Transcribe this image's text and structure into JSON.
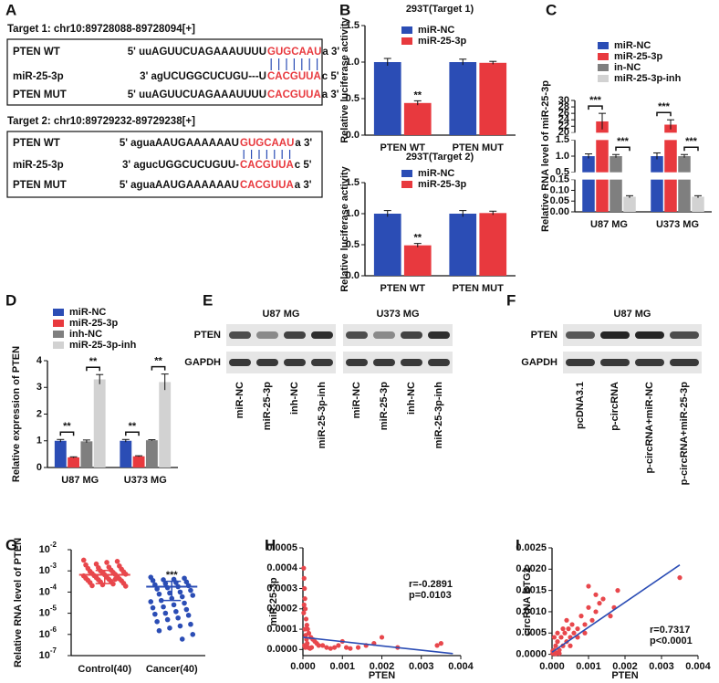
{
  "panel_labels": [
    "A",
    "B",
    "C",
    "D",
    "E",
    "F",
    "G",
    "H",
    "I"
  ],
  "sequences": [
    {
      "title": "Target 1: chr10:89728088-89728094[+]",
      "rows": [
        {
          "label": "PTEN WT",
          "parts": [
            "5' uuAGUUCUAGAAAUUUU",
            "GUGCAAU",
            "a 3'"
          ]
        },
        {
          "label": "miR-25-3p",
          "parts": [
            "3' agUCUGGCUCUGU---U",
            "CACGUUA",
            "c 5'"
          ]
        },
        {
          "label": "PTEN MUT",
          "parts": [
            "5' uuAGUUCUAGAAAUUUU",
            "CACGUUA",
            "a 3'"
          ]
        }
      ]
    },
    {
      "title": "Target 2: chr10:89729232-89729238[+]",
      "rows": [
        {
          "label": "PTEN  WT",
          "parts": [
            "5' aguaAAUGAAAAAAU",
            "GUGCAAU",
            "a 3'"
          ]
        },
        {
          "label": "miR-25-3p",
          "parts": [
            "3' agucUGGCUCUGUU-",
            "CACGUUA",
            "c 5'"
          ]
        },
        {
          "label": "PTEN  MUT",
          "parts": [
            "5' aguaAAUGAAAAAAU",
            "CACGUUA",
            "a 3'"
          ]
        }
      ]
    }
  ],
  "blots": [
    {
      "rows": [
        "PTEN",
        "GAPDH"
      ],
      "groups": [
        {
          "title": "U87 MG",
          "lanes": [
            "miR-NC",
            "miR-25-3p",
            "inh-NC",
            "miR-25-3p-inh"
          ]
        },
        {
          "title": "U373 MG",
          "lanes": [
            "miR-NC",
            "miR-25-3p",
            "inh-NC",
            "miR-25-3p-inh"
          ]
        }
      ]
    },
    {
      "rows": [
        "PTEN",
        "GAPDH"
      ],
      "groups": [
        {
          "title": "U87 MG",
          "lanes": [
            "pcDNA3.1",
            "p-circRNA",
            "p-circRNA+miR-NC",
            "p-circRNA+miR-25-3p"
          ]
        }
      ]
    }
  ],
  "chart_data": [
    {
      "type": "bar",
      "title": "293T(Target 1)",
      "ylabel": "Relative luciferase activity",
      "categories": [
        "PTEN WT",
        "PTEN MUT"
      ],
      "series": [
        {
          "name": "miR-NC",
          "color": "#2b4db5",
          "values": [
            1,
            1
          ],
          "errors": [
            0.05,
            0.04
          ]
        },
        {
          "name": "miR-25-3p",
          "color": "#e8393e",
          "values": [
            0.44,
            0.99
          ],
          "errors": [
            0.03,
            0.02
          ]
        }
      ],
      "ylim": [
        0,
        1.5
      ],
      "yticks": [
        {
          "value": 0,
          "label": "0.0"
        },
        0.5,
        {
          "value": 1,
          "label": "1.0"
        },
        1.5
      ],
      "annotations": [
        "**"
      ]
    },
    {
      "type": "bar",
      "title": "293T(Target 2)",
      "ylabel": "Relative luciferase activity",
      "categories": [
        "PTEN WT",
        "PTEN MUT"
      ],
      "series": [
        {
          "name": "miR-NC",
          "color": "#2b4db5",
          "values": [
            1,
            1
          ],
          "errors": [
            0.05,
            0.05
          ]
        },
        {
          "name": "miR-25-3p",
          "color": "#e8393e",
          "values": [
            0.49,
            1.01
          ],
          "errors": [
            0.03,
            0.03
          ]
        }
      ],
      "ylim": [
        0,
        1.5
      ],
      "yticks": [
        {
          "value": 0,
          "label": "0.0"
        },
        0.5,
        {
          "value": 1,
          "label": "1.0"
        },
        1.5
      ],
      "annotations": [
        "**"
      ]
    },
    {
      "type": "bar",
      "ylabel": "Relative RNA level of miR-25-3p",
      "categories": [
        "U87 MG",
        "U373 MG"
      ],
      "series": [
        {
          "name": "miR-NC",
          "color": "#2b4db5",
          "values": [
            1,
            1
          ],
          "errors": [
            0.07,
            0.1
          ]
        },
        {
          "name": "miR-25-3p",
          "color": "#e8393e",
          "values": [
            23.5,
            22.5
          ],
          "errors": [
            2.5,
            1.5
          ]
        },
        {
          "name": "in-NC",
          "color": "#7f7f7f",
          "values": [
            1,
            1
          ],
          "errors": [
            0.05,
            0.05
          ]
        },
        {
          "name": "miR-25-3p-inh",
          "color": "#d2d2d2",
          "values": [
            0.07,
            0.07
          ],
          "errors": [
            0.005,
            0.005
          ]
        }
      ],
      "ylim": [
        0,
        30
      ],
      "y_breaks": [
        [
          0.15,
          0.5
        ],
        [
          1.5,
          20
        ]
      ],
      "yticks": [
        {
          "value": 0,
          "label": "0.00"
        },
        0.05,
        {
          "value": 0.1,
          "label": "0.10"
        },
        0.15,
        0.5,
        {
          "value": 1,
          "label": "1.0"
        },
        1.5,
        20,
        22,
        24,
        26,
        28,
        30
      ],
      "annotations": [
        "***",
        "***",
        "***",
        "***"
      ]
    },
    {
      "type": "bar",
      "ylabel": "Relative expression of PTEN",
      "categories": [
        "U87 MG",
        "U373 MG"
      ],
      "series": [
        {
          "name": "miR-NC",
          "color": "#2b4db5",
          "values": [
            1,
            1
          ],
          "errors": [
            0.05,
            0.05
          ]
        },
        {
          "name": "miR-25-3p",
          "color": "#e8393e",
          "values": [
            0.38,
            0.42
          ],
          "errors": [
            0.02,
            0.02
          ]
        },
        {
          "name": "inh-NC",
          "color": "#7f7f7f",
          "values": [
            0.98,
            1.02
          ],
          "errors": [
            0.05,
            0.02
          ]
        },
        {
          "name": "miR-25-3p-inh",
          "color": "#d2d2d2",
          "values": [
            3.3,
            3.2
          ],
          "errors": [
            0.18,
            0.3
          ]
        }
      ],
      "ylim": [
        0,
        4
      ],
      "yticks": [
        0,
        1,
        2,
        3,
        4
      ],
      "annotations": [
        "**",
        "**",
        "**",
        "**"
      ]
    },
    {
      "type": "dot",
      "ylabel": "Relative RNA level of PTEN",
      "log_scale": true,
      "categories": [
        "Control(40)",
        "Cancer(40)"
      ],
      "colors": [
        "#e8474c",
        "#2b4db5"
      ],
      "values": [
        [
          0.0032,
          0.0028,
          0.0025,
          0.0021,
          0.0019,
          0.0017,
          0.0015,
          0.0014,
          0.0013,
          0.0012,
          0.0011,
          0.001,
          0.00095,
          0.0009,
          0.00085,
          0.0008,
          0.00075,
          0.0007,
          0.00068,
          0.00065,
          0.0006,
          0.00058,
          0.00055,
          0.0005,
          0.00048,
          0.00045,
          0.00042,
          0.0004,
          0.00038,
          0.00036,
          0.00034,
          0.00032,
          0.0003,
          0.00028,
          0.00026,
          0.00024,
          0.00022,
          0.0002,
          0.00019,
          0.0004
        ],
        [
          0.0005,
          0.00045,
          0.0004,
          0.00038,
          0.00035,
          0.0003,
          0.00028,
          0.00025,
          0.00022,
          0.0002,
          0.00018,
          0.00016,
          0.00014,
          0.00012,
          0.0001,
          9e-05,
          8e-05,
          7e-05,
          6e-05,
          5e-05,
          4e-05,
          3.5e-05,
          3e-05,
          2.5e-05,
          2e-05,
          1.8e-05,
          1.5e-05,
          1.2e-05,
          1e-05,
          9e-06,
          8e-06,
          6e-06,
          5e-06,
          4e-06,
          3e-06,
          2.5e-06,
          2e-06,
          1.5e-06,
          1e-06,
          6e-07
        ]
      ],
      "means": [
        0.00065,
        0.00018
      ],
      "errors": [
        0.0004,
        0.00014
      ],
      "ylim": [
        1e-07,
        0.01
      ],
      "yticks": [
        {
          "value": 0.01,
          "label": "10",
          "exponent": "-2"
        },
        {
          "value": 0.001,
          "label": "10",
          "exponent": "-3"
        },
        {
          "value": 0.0001,
          "label": "10",
          "exponent": "-4"
        },
        {
          "value": 1e-05,
          "label": "10",
          "exponent": "-5"
        },
        {
          "value": 1e-06,
          "label": "10",
          "exponent": "-6"
        },
        {
          "value": 1e-07,
          "label": "10",
          "exponent": "-7"
        }
      ],
      "annotations": [
        "***"
      ]
    },
    {
      "type": "scatter",
      "xlabel": "PTEN",
      "ylabel": "miR-25-3p",
      "color": "#e8474c",
      "fit_color": "#2b4db5",
      "x": [
        2e-05,
        3e-05,
        4e-05,
        5e-05,
        3e-05,
        6e-05,
        2e-05,
        8e-05,
        0.0001,
        0.00012,
        0.00015,
        0.0002,
        0.00025,
        0.0003,
        0.00035,
        0.0004,
        5e-05,
        7e-05,
        9e-05,
        0.00011,
        4e-05,
        6e-05,
        0.00013,
        0.00018,
        0.00022,
        0.0005,
        0.0006,
        0.0007,
        0.0008,
        0.0009,
        0.001,
        0.0011,
        0.0012,
        0.0014,
        0.0016,
        0.0018,
        0.002,
        0.0024,
        0.0034,
        0.0035
      ],
      "y": [
        0.0004,
        0.00035,
        0.0003,
        0.00025,
        0.00022,
        0.0002,
        0.00018,
        0.00015,
        0.00012,
        0.0001,
        8e-05,
        6e-05,
        5e-05,
        4e-05,
        3e-05,
        2e-05,
        0.0001,
        7e-05,
        5e-05,
        3e-05,
        2e-05,
        1e-05,
        1e-05,
        5e-06,
        1e-05,
        2e-05,
        1e-05,
        5e-06,
        1e-05,
        2e-05,
        4e-05,
        1e-05,
        5e-06,
        1e-05,
        2e-05,
        3e-05,
        6e-05,
        1e-05,
        2e-05,
        3e-05
      ],
      "fit_line": {
        "x": [
          0,
          0.0038
        ],
        "y": [
          6e-05,
          -2e-05
        ]
      },
      "xlim": [
        0,
        0.004
      ],
      "xticks": [
        {
          "value": 0,
          "label": "0.000"
        },
        0.001,
        0.002,
        0.003,
        0.004
      ],
      "ylim": [
        -3e-05,
        0.0005
      ],
      "yticks": [
        {
          "value": 0,
          "label": "0.0000"
        },
        0.0001,
        0.0002,
        0.0003,
        0.0004,
        0.0005
      ],
      "annotations": [
        "r=-0.2891",
        "p=0.0103"
      ]
    },
    {
      "type": "scatter",
      "xlabel": "PTEN",
      "ylabel": "circRNA BTG2",
      "color": "#e8474c",
      "fit_color": "#2b4db5",
      "x": [
        2e-05,
        3e-05,
        5e-05,
        8e-05,
        0.0001,
        0.00012,
        0.00015,
        0.0002,
        0.00025,
        0.0003,
        0.00035,
        0.0004,
        0.00045,
        0.0005,
        0.00055,
        0.0006,
        0.0007,
        0.0008,
        0.0009,
        0.001,
        0.0011,
        0.0012,
        0.0013,
        0.0014,
        0.0016,
        0.0018,
        0.0035,
        6e-05,
        0.00015,
        0.0003,
        0.0004,
        0.0005,
        0.0007,
        0.0009,
        0.001,
        0.0012,
        2e-05,
        0.0001,
        0.0002,
        0.0017
      ],
      "y": [
        2e-05,
        5e-05,
        0.0001,
        5e-05,
        0.0002,
        3e-05,
        0.0003,
        0.0001,
        0.0004,
        0.0002,
        0.0005,
        0.0003,
        0.0006,
        0.0004,
        0.0007,
        0.0005,
        0.0006,
        0.0009,
        0.0007,
        0.0011,
        0.0008,
        0.001,
        0.0012,
        0.0013,
        0.0009,
        0.0015,
        0.0018,
        0.0004,
        0.0005,
        0.0006,
        0.0008,
        0.0002,
        0.0004,
        0.0005,
        0.0016,
        0.0014,
        8e-05,
        1e-05,
        2e-05,
        0.0011
      ],
      "fit_line": {
        "x": [
          0,
          0.0035
        ],
        "y": [
          5e-05,
          0.0021
        ]
      },
      "xlim": [
        0,
        0.004
      ],
      "xticks": [
        {
          "value": 0,
          "label": "0.000"
        },
        0.001,
        0.002,
        0.003,
        0.004
      ],
      "ylim": [
        -3e-05,
        0.0025
      ],
      "yticks": [
        {
          "value": 0,
          "label": "0.0000"
        },
        0.0005,
        {
          "value": 0.001,
          "label": "0.0010"
        },
        0.0015,
        {
          "value": 0.002,
          "label": "0.0020"
        },
        0.0025
      ],
      "annotations": [
        "r=0.7317",
        "p<0.0001"
      ]
    }
  ]
}
